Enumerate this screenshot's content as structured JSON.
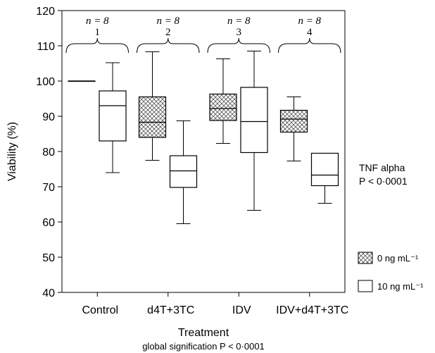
{
  "chart_data": {
    "type": "boxplot",
    "ylabel": "Viability (%)",
    "xlabel": "Treatment",
    "subtitle": "global signification P < 0·0001",
    "ylim": [
      40,
      120
    ],
    "yticks": [
      40,
      50,
      60,
      70,
      80,
      90,
      100,
      110,
      120
    ],
    "categories": [
      "Control",
      "d4T+3TC",
      "IDV",
      "IDV+d4T+3TC"
    ],
    "group_labels": [
      {
        "n": "n = 8",
        "number": "1"
      },
      {
        "n": "n = 8",
        "number": "2"
      },
      {
        "n": "n = 8",
        "number": "3"
      },
      {
        "n": "n = 8",
        "number": "4"
      }
    ],
    "legend": {
      "title": "TNF alpha",
      "pvalue": "P < 0·0001",
      "entries": [
        {
          "label": "0 ng mL⁻¹",
          "pattern": "crosshatch"
        },
        {
          "label": "10 ng mL⁻¹",
          "pattern": "white"
        }
      ]
    },
    "series": [
      {
        "name": "0 ng mL⁻¹",
        "boxes": [
          {
            "min": 100,
            "q1": 100,
            "median": 100,
            "q3": 100,
            "max": 100
          },
          {
            "min": 77.5,
            "q1": 84,
            "median": 88.3,
            "q3": 95.5,
            "max": 108.3
          },
          {
            "min": 82.3,
            "q1": 88.8,
            "median": 92.2,
            "q3": 96.3,
            "max": 106.3
          },
          {
            "min": 77.3,
            "q1": 85.5,
            "median": 89.2,
            "q3": 91.7,
            "max": 95.5
          }
        ]
      },
      {
        "name": "10 ng mL⁻¹",
        "boxes": [
          {
            "min": 74,
            "q1": 83,
            "median": 93,
            "q3": 97.2,
            "max": 105.2
          },
          {
            "min": 59.5,
            "q1": 69.8,
            "median": 74.5,
            "q3": 78.8,
            "max": 88.7
          },
          {
            "min": 63.3,
            "q1": 79.7,
            "median": 88.5,
            "q3": 98.2,
            "max": 108.5
          },
          {
            "min": 65.3,
            "q1": 70.3,
            "median": 73.3,
            "q3": 79.5,
            "max": 79.5
          }
        ]
      }
    ]
  }
}
